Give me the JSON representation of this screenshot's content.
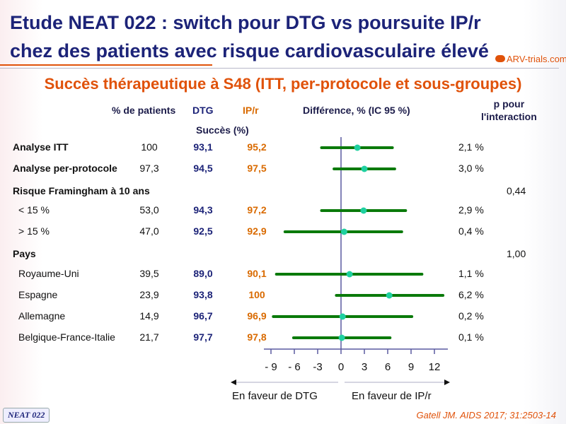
{
  "title_line1": "Etude NEAT 022 : switch pour DTG vs poursuite IP/r",
  "title_line2": "chez des patients avec risque cardiovasculaire élevé",
  "logo": "ARV-trials.com",
  "subtitle": "Succès thérapeutique à S48 (ITT, per-protocole et sous-groupes)",
  "headers": {
    "pct": "% de patients",
    "dtg": "DTG",
    "ipr": "IP/r",
    "succes": "Succès (%)",
    "diff": "Différence, % (IC 95 %)",
    "p": "p pour\nl'interaction"
  },
  "groups": [
    {
      "label": "Risque Framingham à 10 ans",
      "p": "0,44"
    },
    {
      "label": "Pays",
      "p": "1,00"
    }
  ],
  "footer": {
    "favor_dtg": "En faveur de DTG",
    "favor_ipr": "En faveur de IP/r",
    "badge": "NEAT 022",
    "citation": "Gatell JM. AIDS 2017; 31:2503-14"
  },
  "chart_data": {
    "type": "forest",
    "xlabel": "Différence, % (IC 95 %)",
    "xticks": [
      -9,
      -6,
      -3,
      0,
      3,
      6,
      9,
      12
    ],
    "xtick_labels": [
      "- 9",
      "- 6",
      "-3",
      "0",
      "3",
      "6",
      "9",
      "12"
    ],
    "xlim": [
      -10,
      13.5
    ],
    "rows": [
      {
        "label": "Analyse ITT",
        "indent": false,
        "pct": "100",
        "dtg": "93,1",
        "ipr": "95,2",
        "diff": 2.1,
        "diff_label": "2,1 %",
        "lo": -2.5,
        "hi": 6.6
      },
      {
        "label": "Analyse per-protocole",
        "indent": false,
        "pct": "97,3",
        "dtg": "94,5",
        "ipr": "97,5",
        "diff": 3.0,
        "diff_label": "3,0 %",
        "lo": -0.9,
        "hi": 6.9
      },
      {
        "label": "< 15 %",
        "indent": true,
        "pct": "53,0",
        "dtg": "94,3",
        "ipr": "97,2",
        "diff": 2.9,
        "diff_label": "2,9 %",
        "lo": -2.5,
        "hi": 8.3
      },
      {
        "label": "> 15 %",
        "indent": true,
        "pct": "47,0",
        "dtg": "92,5",
        "ipr": "92,9",
        "diff": 0.4,
        "diff_label": "0,4 %",
        "lo": -7.2,
        "hi": 7.8
      },
      {
        "label": "Royaume-Uni",
        "indent": true,
        "pct": "39,5",
        "dtg": "89,0",
        "ipr": "90,1",
        "diff": 1.1,
        "diff_label": "1,1 %",
        "lo": -8.3,
        "hi": 10.4
      },
      {
        "label": "Espagne",
        "indent": true,
        "pct": "23,9",
        "dtg": "93,8",
        "ipr": "100",
        "diff": 6.2,
        "diff_label": "6,2 %",
        "lo": -0.6,
        "hi": 13.1
      },
      {
        "label": "Allemagne",
        "indent": true,
        "pct": "14,9",
        "dtg": "96,7",
        "ipr": "96,9",
        "diff": 0.2,
        "diff_label": "0,2 %",
        "lo": -8.7,
        "hi": 9.1
      },
      {
        "label": "Belgique-France-Italie",
        "indent": true,
        "pct": "21,7",
        "dtg": "97,7",
        "ipr": "97,8",
        "diff": 0.1,
        "diff_label": "0,1 %",
        "lo": -6.1,
        "hi": 6.3
      }
    ],
    "colors": {
      "ci": "#0a7a0a",
      "point": "#1fd0a0",
      "axis": "#5a5aa0"
    }
  }
}
